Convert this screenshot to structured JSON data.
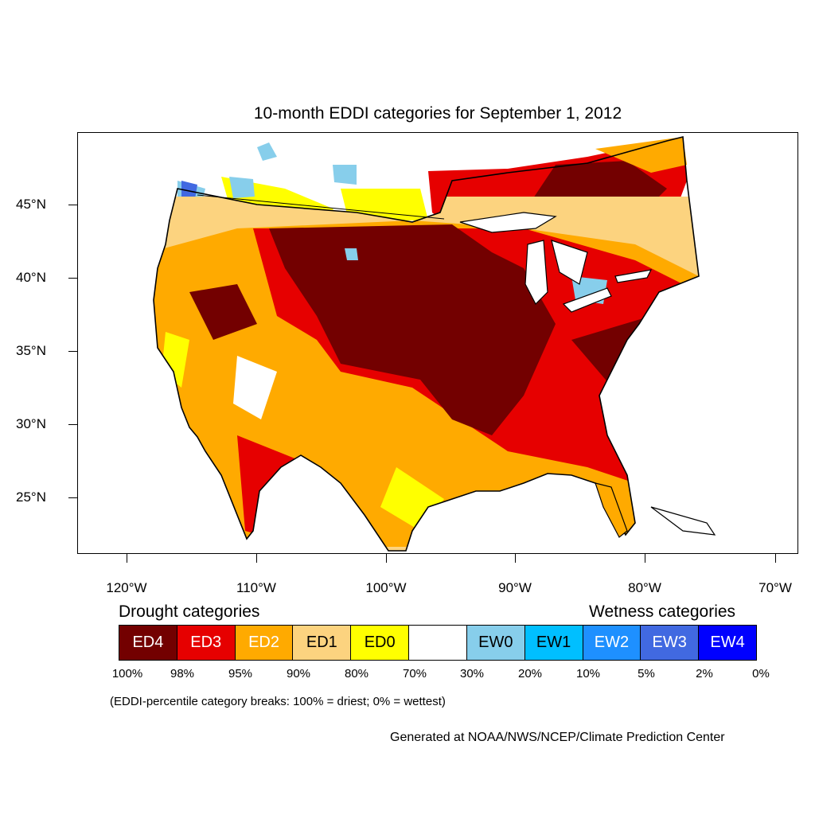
{
  "title": "10-month EDDI categories for September 1, 2012",
  "lat_labels": [
    "45°N",
    "40°N",
    "35°N",
    "30°N",
    "25°N"
  ],
  "lon_labels": [
    "120°W",
    "110°W",
    "100°W",
    "90°W",
    "80°W",
    "70°W"
  ],
  "legend": {
    "drought_heading": "Drought categories",
    "wetness_heading": "Wetness categories",
    "categories": [
      {
        "label": "ED4",
        "color": "#730000"
      },
      {
        "label": "ED3",
        "color": "#e60000"
      },
      {
        "label": "ED2",
        "color": "#ffaa00"
      },
      {
        "label": "ED1",
        "color": "#fcd37f"
      },
      {
        "label": "ED0",
        "color": "#ffff00"
      },
      {
        "label": "",
        "color": "#ffffff"
      },
      {
        "label": "EW0",
        "color": "#87ceeb"
      },
      {
        "label": "EW1",
        "color": "#00bfff"
      },
      {
        "label": "EW2",
        "color": "#1e90ff"
      },
      {
        "label": "EW3",
        "color": "#4169e1"
      },
      {
        "label": "EW4",
        "color": "#0000ff"
      }
    ],
    "breaks": [
      "100%",
      "98%",
      "95%",
      "90%",
      "80%",
      "70%",
      "30%",
      "20%",
      "10%",
      "5%",
      "2%",
      "0%"
    ]
  },
  "note": "(EDDI-percentile category breaks: 100% = driest; 0% = wettest)",
  "credit": "Generated at NOAA/NWS/NCEP/Climate Prediction Center"
}
